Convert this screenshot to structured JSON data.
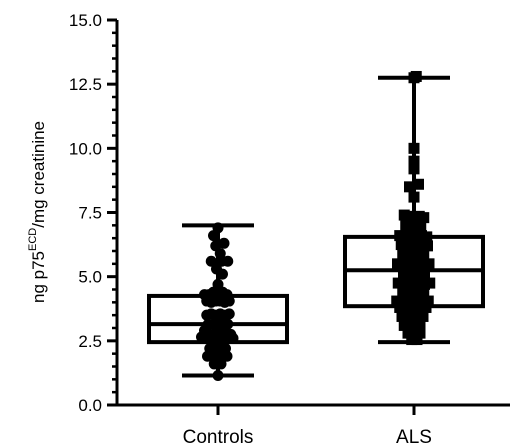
{
  "chart_data": {
    "type": "box",
    "ylabel": {
      "prefix": "ng p75",
      "superscript": "ECD",
      "suffix": "/mg creatinine"
    },
    "ylim": [
      0,
      15
    ],
    "yticks": [
      "0.0",
      "2.5",
      "5.0",
      "7.5",
      "10.0",
      "12.5",
      "15.0"
    ],
    "ytick_values": [
      0,
      2.5,
      5,
      7.5,
      10,
      12.5,
      15
    ],
    "minor_step": 0.5,
    "grid": false,
    "categories": [
      "Controls",
      "ALS"
    ],
    "series": [
      {
        "category": "Controls",
        "marker": "circle",
        "box": {
          "min": 1.15,
          "q1": 2.45,
          "median": 3.15,
          "q3": 4.25,
          "max": 7.0
        },
        "points": [
          [
            0,
            6.9
          ],
          [
            -0.6,
            6.6
          ],
          [
            0.8,
            6.3
          ],
          [
            -0.3,
            6.2
          ],
          [
            0.3,
            5.9
          ],
          [
            -0.9,
            5.6
          ],
          [
            0.5,
            5.6
          ],
          [
            1.3,
            5.6
          ],
          [
            -0.2,
            5.3
          ],
          [
            0.6,
            5.1
          ],
          [
            0,
            4.7
          ],
          [
            -1.8,
            4.3
          ],
          [
            -1.2,
            4.3
          ],
          [
            -0.6,
            4.4
          ],
          [
            0,
            4.4
          ],
          [
            0.6,
            4.4
          ],
          [
            1.2,
            4.3
          ],
          [
            -1.5,
            4.05
          ],
          [
            -0.9,
            4.0
          ],
          [
            -0.3,
            4.05
          ],
          [
            0.3,
            4.05
          ],
          [
            0.9,
            4.0
          ],
          [
            1.5,
            4.05
          ],
          [
            -1.5,
            3.5
          ],
          [
            -0.9,
            3.55
          ],
          [
            -0.3,
            3.5
          ],
          [
            0.3,
            3.55
          ],
          [
            0.9,
            3.5
          ],
          [
            1.5,
            3.55
          ],
          [
            -1.3,
            3.15
          ],
          [
            -0.6,
            3.15
          ],
          [
            0,
            3.15
          ],
          [
            0.6,
            3.15
          ],
          [
            1.3,
            3.15
          ],
          [
            -1.8,
            2.9
          ],
          [
            -1.1,
            2.75
          ],
          [
            -0.4,
            2.8
          ],
          [
            0.3,
            2.75
          ],
          [
            1.0,
            2.8
          ],
          [
            1.7,
            2.75
          ],
          [
            -2.2,
            2.65
          ],
          [
            -1.5,
            2.6
          ],
          [
            -0.8,
            2.6
          ],
          [
            -0.1,
            2.6
          ],
          [
            0.6,
            2.6
          ],
          [
            1.3,
            2.65
          ],
          [
            2.0,
            2.6
          ],
          [
            -1.1,
            2.2
          ],
          [
            -0.4,
            2.2
          ],
          [
            0.3,
            2.2
          ],
          [
            1.0,
            2.2
          ],
          [
            -1.4,
            1.9
          ],
          [
            -0.5,
            1.9
          ],
          [
            0.4,
            1.9
          ],
          [
            1.2,
            1.9
          ],
          [
            -0.5,
            1.6
          ],
          [
            0.4,
            1.6
          ],
          [
            0,
            1.15
          ]
        ]
      },
      {
        "category": "ALS",
        "marker": "square",
        "box": {
          "min": 2.45,
          "q1": 3.85,
          "median": 5.25,
          "q3": 6.55,
          "max": 12.75
        },
        "points": [
          [
            0,
            12.75
          ],
          [
            0.3,
            12.8
          ],
          [
            0,
            10.0
          ],
          [
            0,
            9.5
          ],
          [
            0,
            9.2
          ],
          [
            -0.6,
            8.5
          ],
          [
            0.6,
            8.6
          ],
          [
            0,
            8.1
          ],
          [
            -1.3,
            7.4
          ],
          [
            -0.7,
            7.35
          ],
          [
            0,
            7.3
          ],
          [
            0.7,
            7.35
          ],
          [
            1.3,
            7.3
          ],
          [
            -1.1,
            7.0
          ],
          [
            0.2,
            7.0
          ],
          [
            0.9,
            6.9
          ],
          [
            -1.9,
            6.6
          ],
          [
            -1.2,
            6.55
          ],
          [
            -0.5,
            6.6
          ],
          [
            0.3,
            6.55
          ],
          [
            1.0,
            6.6
          ],
          [
            1.7,
            6.55
          ],
          [
            -1.7,
            6.25
          ],
          [
            -1.0,
            6.2
          ],
          [
            -0.3,
            6.25
          ],
          [
            0.4,
            6.2
          ],
          [
            1.1,
            6.25
          ],
          [
            1.8,
            6.2
          ],
          [
            -1.5,
            5.85
          ],
          [
            -0.8,
            5.8
          ],
          [
            -0.1,
            5.85
          ],
          [
            0.6,
            5.8
          ],
          [
            1.3,
            5.85
          ],
          [
            -2.2,
            5.5
          ],
          [
            -1.5,
            5.45
          ],
          [
            -0.8,
            5.5
          ],
          [
            -0.1,
            5.45
          ],
          [
            0.6,
            5.5
          ],
          [
            1.3,
            5.45
          ],
          [
            2.0,
            5.5
          ],
          [
            -1.4,
            5.05
          ],
          [
            -0.7,
            5.0
          ],
          [
            0,
            5.05
          ],
          [
            0.7,
            5.0
          ],
          [
            1.4,
            5.05
          ],
          [
            -2.1,
            4.75
          ],
          [
            -1.4,
            4.7
          ],
          [
            -0.7,
            4.75
          ],
          [
            0,
            4.7
          ],
          [
            0.7,
            4.75
          ],
          [
            1.4,
            4.7
          ],
          [
            2.1,
            4.75
          ],
          [
            -1.5,
            4.4
          ],
          [
            -0.8,
            4.35
          ],
          [
            -0.1,
            4.4
          ],
          [
            0.6,
            4.35
          ],
          [
            1.3,
            4.4
          ],
          [
            -2.3,
            4.05
          ],
          [
            -1.6,
            4.0
          ],
          [
            -0.9,
            4.05
          ],
          [
            -0.2,
            4.0
          ],
          [
            0.5,
            4.05
          ],
          [
            1.2,
            4.0
          ],
          [
            1.9,
            4.05
          ],
          [
            -1.9,
            3.8
          ],
          [
            -1.2,
            3.8
          ],
          [
            -0.5,
            3.8
          ],
          [
            0.2,
            3.8
          ],
          [
            0.9,
            3.8
          ],
          [
            1.6,
            3.8
          ],
          [
            -1.6,
            3.45
          ],
          [
            -0.9,
            3.4
          ],
          [
            -0.2,
            3.45
          ],
          [
            0.5,
            3.4
          ],
          [
            1.2,
            3.45
          ],
          [
            -1.3,
            3.1
          ],
          [
            -0.6,
            3.1
          ],
          [
            0.1,
            3.1
          ],
          [
            0.8,
            3.1
          ],
          [
            -0.8,
            2.8
          ],
          [
            0,
            2.85
          ],
          [
            0.8,
            2.8
          ],
          [
            -0.3,
            2.55
          ],
          [
            0.4,
            2.55
          ]
        ]
      }
    ]
  }
}
